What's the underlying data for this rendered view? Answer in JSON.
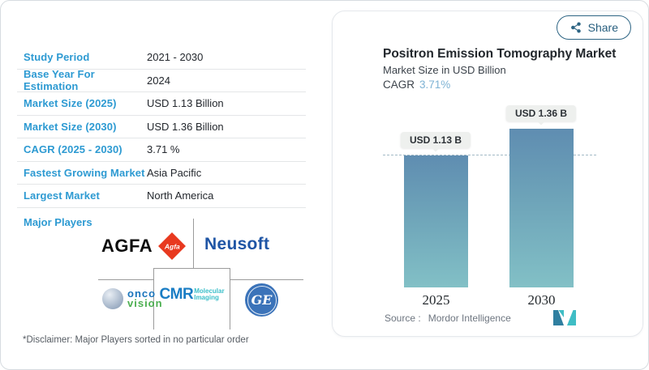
{
  "info_table": {
    "rows": [
      {
        "label": "Study Period",
        "value": "2021 - 2030"
      },
      {
        "label": "Base Year For Estimation",
        "value": "2024"
      },
      {
        "label": "Market Size (2025)",
        "value": "USD 1.13 Billion"
      },
      {
        "label": "Market Size (2030)",
        "value": "USD 1.36 Billion"
      },
      {
        "label": "CAGR (2025 - 2030)",
        "value": "3.71 %"
      },
      {
        "label": "Fastest Growing Market",
        "value": "Asia Pacific"
      },
      {
        "label": "Largest Market",
        "value": "North America"
      }
    ]
  },
  "major_players": {
    "heading": "Major Players",
    "disclaimer": "*Disclaimer: Major Players sorted in no particular order",
    "logos": {
      "agfa": {
        "text": "AGFA",
        "diamond_text": "Agfa"
      },
      "neusoft": {
        "text": "Neusoft"
      },
      "oncovision": {
        "line1": "onco",
        "line2": "vision"
      },
      "cmr": {
        "text": "CMR",
        "line1": "Molecular",
        "line2": "Imaging"
      },
      "ge": {
        "text": "GE"
      }
    }
  },
  "chart_card": {
    "share_label": "Share",
    "title": "Positron Emission Tomography Market",
    "subtitle": "Market Size in USD Billion",
    "cagr_label": "CAGR",
    "cagr_value": "3.71%",
    "source_label": "Source :",
    "source_name": "Mordor Intelligence"
  },
  "chart_data": {
    "type": "bar",
    "title": "Positron Emission Tomography Market",
    "ylabel": "Market Size in USD Billion",
    "categories": [
      "2025",
      "2030"
    ],
    "values": [
      1.13,
      1.36
    ],
    "bar_labels": [
      "USD 1.13 B",
      "USD 1.36 B"
    ],
    "unit": "USD Billion",
    "cagr_percent": 3.71,
    "ylim": [
      0,
      1.7
    ],
    "grid": false,
    "legend": false,
    "reference_line": {
      "value": 1.13,
      "style": "dashed"
    },
    "bar_gradient": [
      "#5f8db1",
      "#82c0c6"
    ]
  },
  "colors": {
    "accent_blue": "#2d9ad2",
    "cagr_value_blue": "#7fb3d4",
    "share_teal": "#2e6584",
    "bar_top": "#5f8db1",
    "bar_bottom": "#82c0c6",
    "dashed_line": "#a3bac6",
    "agfa_red": "#e8391f",
    "neusoft_blue": "#1f55a5",
    "onco_blue": "#1b75bb",
    "onco_green": "#4caf50",
    "cmr_blue": "#1a7dc4",
    "cmr_teal": "#3bbfc9",
    "ge_blue": "#3b73b9"
  }
}
